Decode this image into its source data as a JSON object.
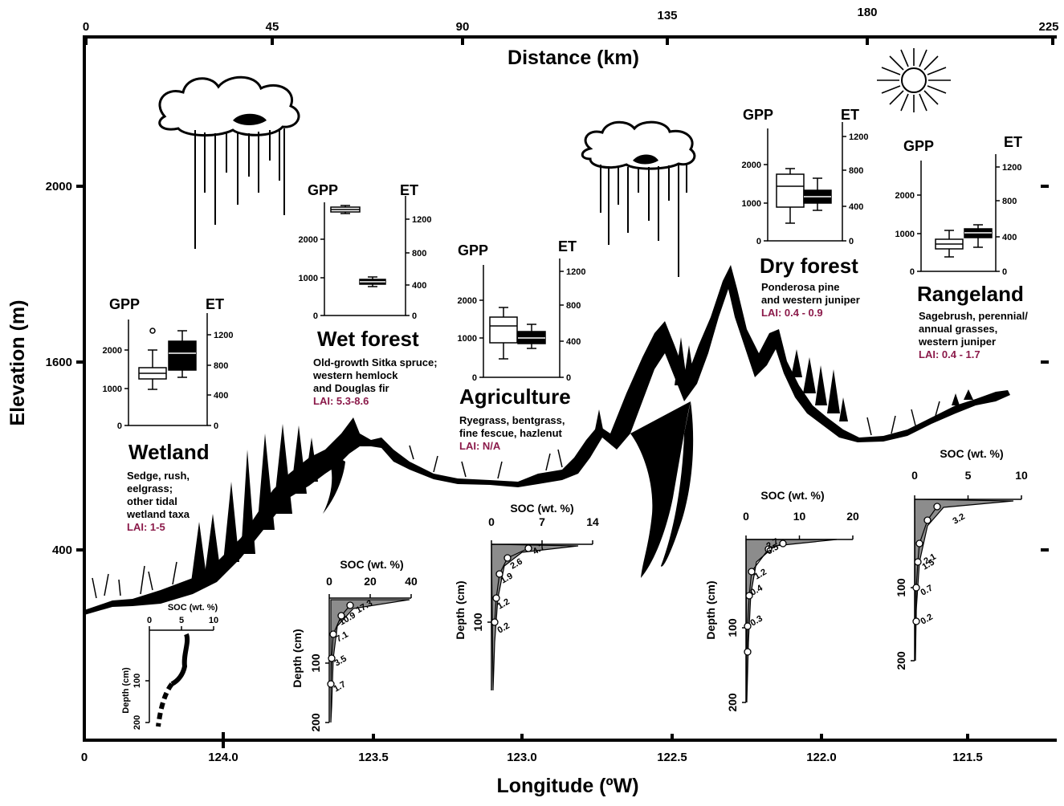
{
  "axes": {
    "top_title": "Distance (km)",
    "top_ticks": [
      "0",
      "45",
      "90",
      "135",
      "180",
      "225"
    ],
    "left_title": "Elevation (m)",
    "left_ticks": [
      "400",
      "1600",
      "2000"
    ],
    "bottom_title": "Longitude (ºW)",
    "bottom_ticks": [
      "0",
      "124.0",
      "123.5",
      "123.0",
      "122.5",
      "122.0",
      "121.5"
    ]
  },
  "ecosystems": [
    {
      "name": "Wetland",
      "desc": [
        "Sedge, rush,",
        "eelgrass;",
        "other tidal",
        "wetland taxa"
      ],
      "lai": "LAI: 1-5",
      "gpp_label": "GPP",
      "et_label": "ET",
      "gpp_ticks": [
        "0",
        "1000",
        "2000"
      ],
      "et_ticks": [
        "0",
        "400",
        "800",
        "1200"
      ]
    },
    {
      "name": "Wet forest",
      "desc": [
        "Old-growth Sitka spruce;",
        "western hemlock",
        "and Douglas fir"
      ],
      "lai": "LAI: 5.3-8.6",
      "gpp_label": "GPP",
      "et_label": "ET",
      "gpp_ticks": [
        "0",
        "1000",
        "2000"
      ],
      "et_ticks": [
        "0",
        "400",
        "800",
        "1200"
      ]
    },
    {
      "name": "Agriculture",
      "desc": [
        "Ryegrass, bentgrass,",
        "fine fescue, hazlenut"
      ],
      "lai": "LAI: N/A",
      "gpp_label": "GPP",
      "et_label": "ET",
      "gpp_ticks": [
        "0",
        "1000",
        "2000"
      ],
      "et_ticks": [
        "0",
        "400",
        "800",
        "1200"
      ]
    },
    {
      "name": "Dry forest",
      "desc": [
        "Ponderosa pine",
        "and western juniper"
      ],
      "lai": "LAI: 0.4 - 0.9",
      "gpp_label": "GPP",
      "et_label": "ET",
      "gpp_ticks": [
        "0",
        "1000",
        "2000"
      ],
      "et_ticks": [
        "0",
        "400",
        "800",
        "1200"
      ]
    },
    {
      "name": "Rangeland",
      "desc": [
        "Sagebrush, perennial/",
        "annual grasses,",
        "western juniper"
      ],
      "lai": "LAI: 0.4 - 1.7",
      "gpp_label": "GPP",
      "et_label": "ET",
      "gpp_ticks": [
        "0",
        "1000",
        "2000"
      ],
      "et_ticks": [
        "0",
        "400",
        "800",
        "1200"
      ]
    }
  ],
  "soc_profiles": [
    {
      "title": "SOC (wt. %)",
      "ylabel": "Depth (cm)",
      "x_ticks": [
        "0",
        "5",
        "10"
      ],
      "y_ticks": [
        "100",
        "200"
      ],
      "values": []
    },
    {
      "title": "SOC (wt. %)",
      "ylabel": "Depth (cm)",
      "x_ticks": [
        "0",
        "20",
        "40"
      ],
      "y_ticks": [
        "100",
        "200"
      ],
      "values": [
        "17.3",
        "10.9",
        "7.1",
        "3.5",
        "1.7"
      ]
    },
    {
      "title": "SOC (wt. %)",
      "ylabel": "Depth (cm)",
      "x_ticks": [
        "0",
        "7",
        "14"
      ],
      "y_ticks": [
        "100"
      ],
      "values": [
        "4.7",
        "2.6",
        "1.9",
        "1.2",
        "0.2"
      ]
    },
    {
      "title": "SOC (wt. %)",
      "ylabel": "Depth (cm)",
      "x_ticks": [
        "0",
        "10",
        "20"
      ],
      "y_ticks": [
        "100",
        "200"
      ],
      "values": [
        "6.5",
        "2.7",
        "1.2",
        "0.4",
        "0.3"
      ]
    },
    {
      "title": "SOC (wt. %)",
      "ylabel": "",
      "x_ticks": [
        "0",
        "5",
        "10"
      ],
      "y_ticks": [
        "100",
        "200"
      ],
      "values": [
        "3.2",
        "2.1",
        "1.5",
        "0.7",
        "0.2"
      ]
    }
  ]
}
